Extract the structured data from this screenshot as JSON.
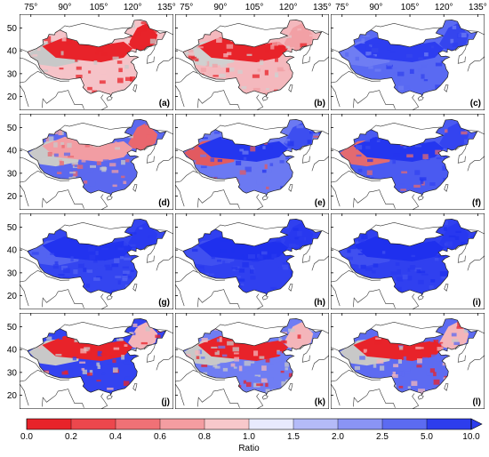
{
  "panels": [
    {
      "label": "(a)",
      "mode": "ratio_low_gray",
      "colors": {
        "north": "#e8232a",
        "northeast": "#e8232a",
        "south": "#f5c3c8",
        "west_gray": "#c8c8c8"
      }
    },
    {
      "label": "(b)",
      "mode": "ratio_low",
      "colors": {
        "north": "#e8232a",
        "northeast": "#f2a0a5",
        "south": "#f4b8bd",
        "west_gray": "#d0d0d0"
      }
    },
    {
      "label": "(c)",
      "mode": "ratio_high",
      "colors": {
        "north": "#2d3df0",
        "northeast": "#3545ee",
        "south": "#5a6af2",
        "west_gray": "#6f7df3"
      }
    },
    {
      "label": "(d)",
      "mode": "mixed",
      "colors": {
        "north": "#f29da3",
        "northeast": "#e9676e",
        "south": "#5b68ef",
        "west_gray": "#c9c9c9"
      }
    },
    {
      "label": "(e)",
      "mode": "ratio_high",
      "colors": {
        "north": "#2436ef",
        "northeast": "#3d4ef0",
        "south": "#6b79f2",
        "west_gray": "#e25a60"
      }
    },
    {
      "label": "(f)",
      "mode": "ratio_high",
      "colors": {
        "north": "#2436ef",
        "northeast": "#3444f0",
        "south": "#4a5af1",
        "west_gray": "#e36a70"
      }
    },
    {
      "label": "(g)",
      "mode": "ratio_high",
      "colors": {
        "north": "#2233ef",
        "northeast": "#2a3aef",
        "south": "#3445f0",
        "west_gray": "#5363f1"
      }
    },
    {
      "label": "(h)",
      "mode": "ratio_high",
      "colors": {
        "north": "#1f30ee",
        "northeast": "#2838ef",
        "south": "#3040ef",
        "west_gray": "#4050f0"
      }
    },
    {
      "label": "(i)",
      "mode": "ratio_high",
      "colors": {
        "north": "#1f30ee",
        "northeast": "#2838ef",
        "south": "#3040ef",
        "west_gray": "#4050f0"
      }
    },
    {
      "label": "(j)",
      "mode": "split",
      "colors": {
        "north": "#e8232a",
        "northeast": "#f4b5ba",
        "south": "#3343f0",
        "west_gray": "#c8c8c8"
      }
    },
    {
      "label": "(k)",
      "mode": "split",
      "colors": {
        "north": "#e8232a",
        "northeast": "#f4b5ba",
        "south": "#6f7df3",
        "west_gray": "#c8c8c8"
      }
    },
    {
      "label": "(l)",
      "mode": "split",
      "colors": {
        "north": "#e8232a",
        "northeast": "#f4b5ba",
        "south": "#5d6bf1",
        "west_gray": "#c8c8c8"
      }
    }
  ],
  "longitude_ticks": [
    "75°",
    "90°",
    "105°",
    "120°",
    "135°"
  ],
  "latitude_ticks": [
    "50",
    "40",
    "30",
    "20"
  ],
  "colorbar": {
    "label": "Ratio",
    "tick_labels": [
      "0.0",
      "0.2",
      "0.4",
      "0.6",
      "0.8",
      "1.0",
      "1.5",
      "2.0",
      "2.5",
      "5.0",
      "10.0"
    ],
    "colors": [
      "#e8232a",
      "#ec474d",
      "#f07176",
      "#f49da1",
      "#f8c8cb",
      "#e8eafd",
      "#b4bbf8",
      "#8a94f5",
      "#5c6bf1",
      "#2d3ded"
    ],
    "extend": "max"
  }
}
